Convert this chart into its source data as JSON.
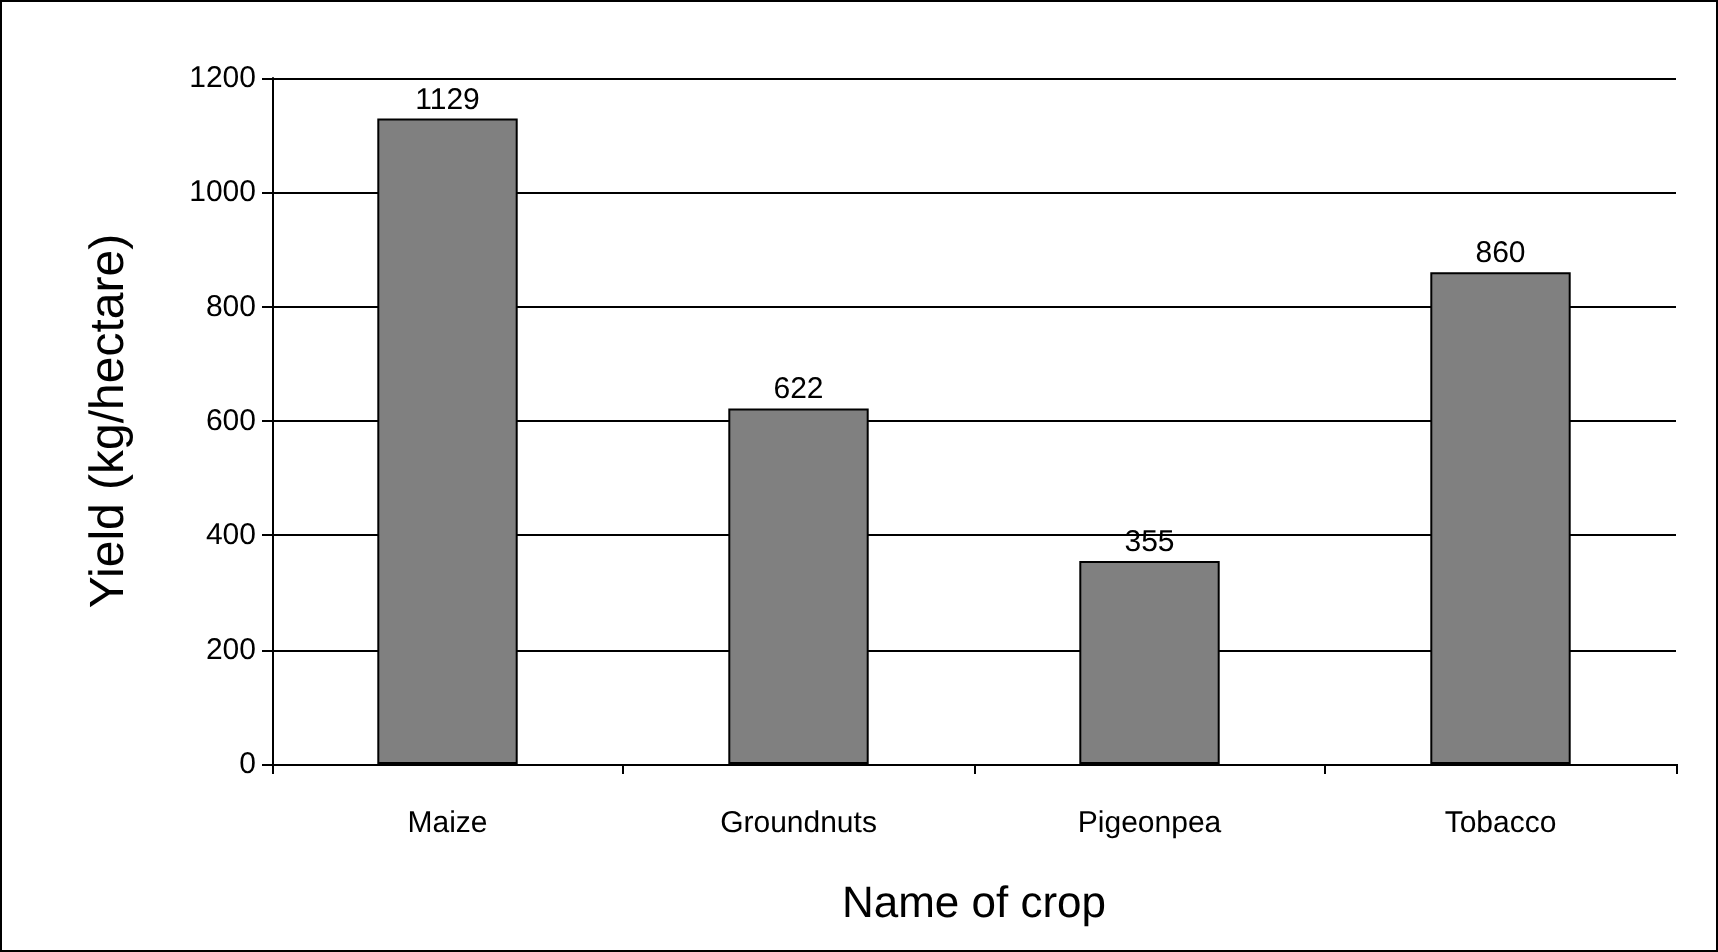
{
  "chart_data": {
    "type": "bar",
    "xlabel": "Name of crop",
    "ylabel": "Yield (kg/hectare)",
    "categories": [
      "Maize",
      "Groundnuts",
      "Pigeonpea",
      "Tobacco"
    ],
    "values": [
      1129,
      622,
      355,
      860
    ],
    "color": "#808080",
    "ylim": [
      0,
      1200
    ],
    "yticks": [
      0,
      200,
      400,
      600,
      800,
      1000,
      1200
    ],
    "grid": "y",
    "data_labels": true
  }
}
